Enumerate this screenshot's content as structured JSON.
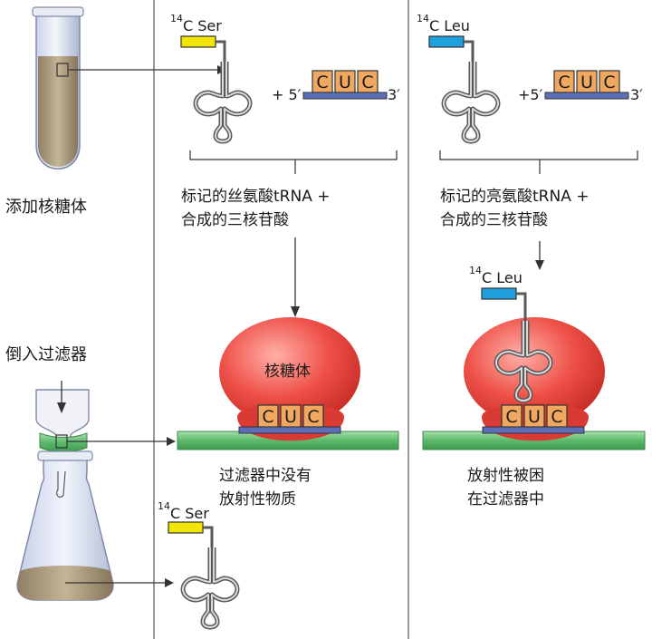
{
  "labels": {
    "add_ribosome": "添加核糖体",
    "pour_filter": "倒入过滤器",
    "ser_desc_line1": "标记的丝氨酸tRNA +",
    "ser_desc_line2": "合成的三核苷酸",
    "leu_desc_line1": "标记的亮氨酸tRNA +",
    "leu_desc_line2": "合成的三核苷酸",
    "ribosome": "核糖体",
    "no_radio_line1": "过滤器中没有",
    "no_radio_line2": "放射性物质",
    "radio_line1": "放射性被困",
    "radio_line2": "在过滤器中"
  },
  "trna": {
    "ser_sup": "14",
    "ser_name": "C Ser",
    "leu_sup": "14",
    "leu_name": "C Leu"
  },
  "mrna": {
    "plus5": "+ 5′",
    "plus5b": "+5′",
    "three": "3′",
    "codon": [
      "C",
      "U",
      "C"
    ]
  },
  "colors": {
    "ser_tag": "#f2e600",
    "leu_tag": "#1ea0dc",
    "codon_box": "#f0a860",
    "mrna_bar": "#5b6fb8",
    "ribosome": "#e8443c",
    "filter": "#6cc07a",
    "divider": "#555555"
  }
}
